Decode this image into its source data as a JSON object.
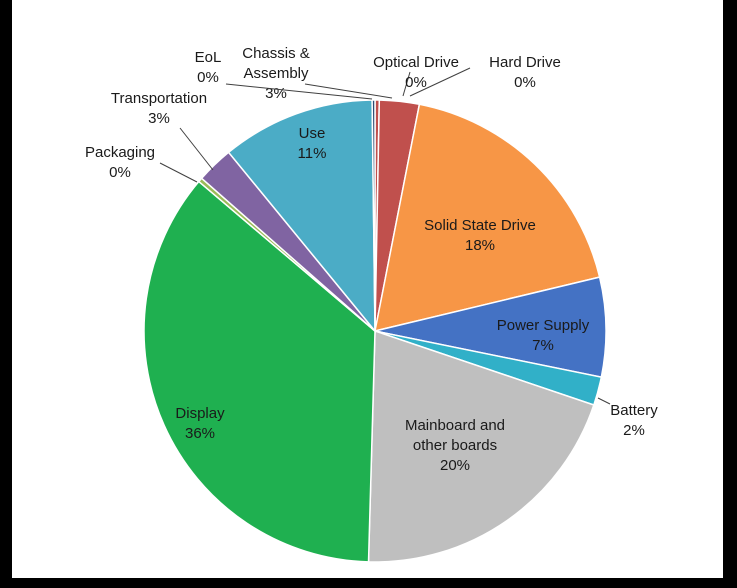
{
  "chart_data": {
    "type": "pie",
    "title": "",
    "slices": [
      {
        "label": [
          "Optical Drive"
        ],
        "pct": "0%",
        "value": 0.3,
        "color": "#c0504d"
      },
      {
        "label": [
          "Hard Drive"
        ],
        "pct": "0%",
        "value": 0.0,
        "color": "#c0504d"
      },
      {
        "label": [
          "Chassis &",
          "Assembly"
        ],
        "pct": "3%",
        "value": 2.8,
        "color": "#c0504d"
      },
      {
        "label": [
          "Solid State Drive"
        ],
        "pct": "18%",
        "value": 18.3,
        "color": "#f79646"
      },
      {
        "label": [
          "Power Supply"
        ],
        "pct": "7%",
        "value": 7.0,
        "color": "#4472c4"
      },
      {
        "label": [
          "Battery"
        ],
        "pct": "2%",
        "value": 2.0,
        "color": "#31b0c8"
      },
      {
        "label": [
          "Mainboard and",
          "other boards"
        ],
        "pct": "20%",
        "value": 20.4,
        "color": "#bfbfbf"
      },
      {
        "label": [
          "Display"
        ],
        "pct": "36%",
        "value": 36.0,
        "color": "#1fb050"
      },
      {
        "label": [
          "Packaging"
        ],
        "pct": "0%",
        "value": 0.3,
        "color": "#9bbb59"
      },
      {
        "label": [
          "Transportation"
        ],
        "pct": "3%",
        "value": 2.6,
        "color": "#8064a2"
      },
      {
        "label": [
          "Use"
        ],
        "pct": "11%",
        "value": 10.8,
        "color": "#4bacc6"
      },
      {
        "label": [
          "EoL"
        ],
        "pct": "0%",
        "value": 0.2,
        "color": "#2c4d75"
      }
    ]
  }
}
